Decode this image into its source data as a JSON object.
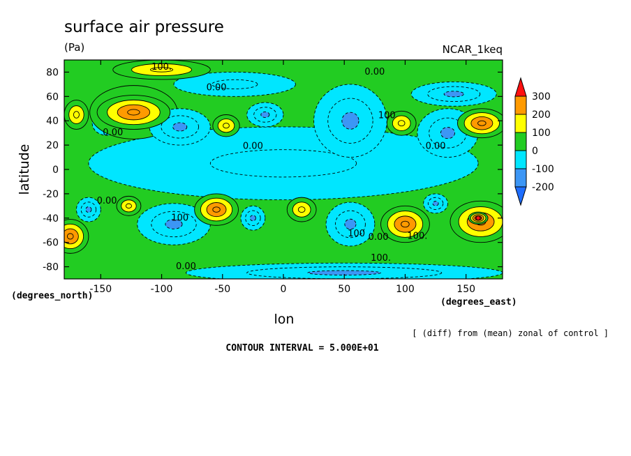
{
  "chart_data": {
    "type": "heatmap",
    "title": "surface air pressure",
    "units": "(Pa)",
    "dataset": "NCAR_1keq",
    "xlabel": "lon",
    "ylabel": "latitude",
    "x_unit_label": "(degrees_east)",
    "y_unit_label": "(degrees_north)",
    "note": "[ (diff) from (mean) zonal of control ]",
    "contour_interval": "CONTOUR INTERVAL = 5.000E+01",
    "xlim": [
      -180,
      180
    ],
    "ylim": [
      -90,
      90
    ],
    "x_ticks": [
      -150,
      -100,
      -50,
      0,
      50,
      100,
      150
    ],
    "x_tick_labels": [
      "-150",
      "-100",
      "-50",
      "0",
      "50",
      "100",
      "150"
    ],
    "y_ticks": [
      -80,
      -60,
      -40,
      -20,
      0,
      20,
      40,
      60,
      80
    ],
    "y_tick_labels": [
      "-80",
      "-60",
      "-40",
      "-20",
      "0",
      "20",
      "40",
      "60",
      "80"
    ],
    "colorbar": {
      "levels": [
        -200,
        -100,
        0,
        100,
        200,
        300
      ],
      "labels": [
        "300",
        "200",
        "100",
        "0",
        "-100",
        "-200"
      ],
      "colors": {
        "below_-200": "#1e6eff",
        "-200_-100": "#3c96f5",
        "-100_0": "#00e6ff",
        "0_100": "#22cc22",
        "100_200": "#ffff00",
        "200_300": "#ff9a00",
        "above_300": "#ff1010"
      }
    },
    "contour_labels": [
      {
        "text": "100.",
        "lon": -100,
        "lat": 82
      },
      {
        "text": "0.00",
        "lon": 75,
        "lat": 78
      },
      {
        "text": "0.00",
        "lon": -55,
        "lat": 65
      },
      {
        "text": "0.00",
        "lon": -140,
        "lat": 28
      },
      {
        "text": "0.00",
        "lon": -25,
        "lat": 17
      },
      {
        "text": "100",
        "lon": 85,
        "lat": 42
      },
      {
        "text": "0.00",
        "lon": 125,
        "lat": 17
      },
      {
        "text": "0.00",
        "lon": -145,
        "lat": -28
      },
      {
        "text": "100",
        "lon": -85,
        "lat": -42
      },
      {
        "text": "100",
        "lon": 60,
        "lat": -55
      },
      {
        "text": "0.00",
        "lon": 78,
        "lat": -58
      },
      {
        "text": "100.",
        "lon": 110,
        "lat": -57
      },
      {
        "text": "100.",
        "lon": 80,
        "lat": -75
      },
      {
        "text": "0.00",
        "lon": -80,
        "lat": -82
      }
    ],
    "features": [
      {
        "lon": -123,
        "lat": 47,
        "lonr": 30,
        "latr": 14,
        "value": 250
      },
      {
        "lon": -123,
        "lat": 47,
        "lonr": 36,
        "latr": 22,
        "value": 150
      },
      {
        "lon": -100,
        "lat": 82,
        "lonr": 40,
        "latr": 8,
        "value": 120
      },
      {
        "lon": -145,
        "lat": 38,
        "lonr": 12,
        "latr": 10,
        "value": -130
      },
      {
        "lon": -170,
        "lat": 45,
        "lonr": 10,
        "latr": 12,
        "value": 120
      },
      {
        "lon": -85,
        "lat": 35,
        "lonr": 25,
        "latr": 15,
        "value": -160
      },
      {
        "lon": -47,
        "lat": 36,
        "lonr": 11,
        "latr": 9,
        "value": 140
      },
      {
        "lon": -15,
        "lat": 45,
        "lonr": 15,
        "latr": 10,
        "value": -110
      },
      {
        "lon": 55,
        "lat": 40,
        "lonr": 30,
        "latr": 30,
        "value": -170
      },
      {
        "lon": 0,
        "lat": 5,
        "lonr": 160,
        "latr": 30,
        "value": -50
      },
      {
        "lon": -40,
        "lat": 70,
        "lonr": 50,
        "latr": 10,
        "value": -40
      },
      {
        "lon": 135,
        "lat": 30,
        "lonr": 25,
        "latr": 20,
        "value": -120
      },
      {
        "lon": 140,
        "lat": 62,
        "lonr": 35,
        "latr": 10,
        "value": -130
      },
      {
        "lon": 97,
        "lat": 38,
        "lonr": 12,
        "latr": 10,
        "value": 150
      },
      {
        "lon": 163,
        "lat": 38,
        "lonr": 20,
        "latr": 12,
        "value": 240
      },
      {
        "lon": -160,
        "lat": -33,
        "lonr": 10,
        "latr": 10,
        "value": -130
      },
      {
        "lon": -127,
        "lat": -30,
        "lonr": 10,
        "latr": 8,
        "value": 150
      },
      {
        "lon": -90,
        "lat": -45,
        "lonr": 30,
        "latr": 17,
        "value": -190
      },
      {
        "lon": -55,
        "lat": -33,
        "lonr": 18,
        "latr": 13,
        "value": 230
      },
      {
        "lon": -25,
        "lat": -40,
        "lonr": 10,
        "latr": 10,
        "value": -130
      },
      {
        "lon": 15,
        "lat": -33,
        "lonr": 12,
        "latr": 10,
        "value": 150
      },
      {
        "lon": 55,
        "lat": -45,
        "lonr": 20,
        "latr": 18,
        "value": -180
      },
      {
        "lon": 100,
        "lat": -45,
        "lonr": 20,
        "latr": 15,
        "value": 230
      },
      {
        "lon": 125,
        "lat": -28,
        "lonr": 10,
        "latr": 8,
        "value": -110
      },
      {
        "lon": 162,
        "lat": -43,
        "lonr": 25,
        "latr": 17,
        "value": 240
      },
      {
        "lon": 160,
        "lat": -40,
        "lonr": 8,
        "latr": 5,
        "value": 320
      },
      {
        "lon": -175,
        "lat": -55,
        "lonr": 15,
        "latr": 14,
        "value": 220
      },
      {
        "lon": 50,
        "lat": -85,
        "lonr": 130,
        "latr": 8,
        "value": -180
      }
    ]
  }
}
